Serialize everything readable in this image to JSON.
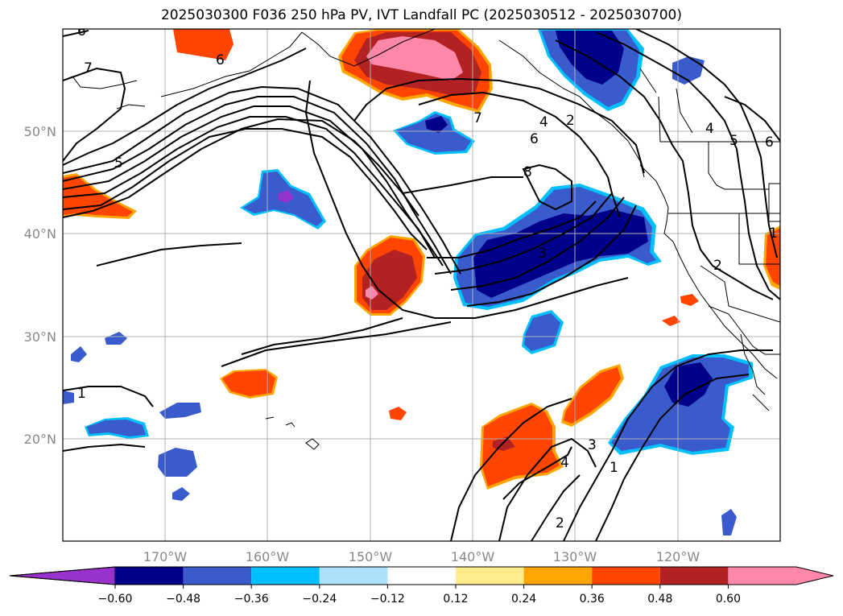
{
  "title": "2025030300 F036 250 hPa PV, IVT Landfall PC (2025030512 - 2025030700)",
  "latitude_labels": [
    "50°N",
    "40°N",
    "30°N",
    "20°N"
  ],
  "longitude_labels": [
    "170°W",
    "160°W",
    "150°W",
    "140°W",
    "130°W",
    "120°W"
  ],
  "contour_labels": [
    "6",
    "7",
    "6",
    "7",
    "6",
    "4",
    "2",
    "4",
    "5",
    "6",
    "5",
    "8",
    "3",
    "2",
    "1",
    "1",
    "4",
    "3",
    "2",
    "1"
  ],
  "colorbar": {
    "tick_labels": [
      "−0.60",
      "−0.48",
      "−0.36",
      "−0.24",
      "−0.12",
      "0.12",
      "0.24",
      "0.36",
      "0.48",
      "0.60"
    ],
    "colors": [
      "#9932CC",
      "#00008B",
      "#3A5BCC",
      "#00BFFF",
      "#ADE0FA",
      "#FFFFFF",
      "#FFEC8B",
      "#FFA500",
      "#FF4500",
      "#B22222",
      "#FF88AA"
    ]
  }
}
